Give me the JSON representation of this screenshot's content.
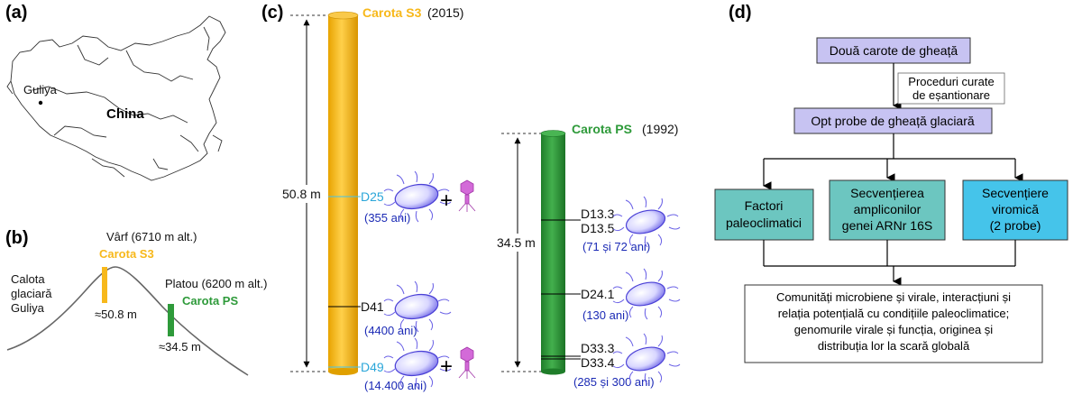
{
  "panels": {
    "a": "(a)",
    "b": "(b)",
    "c": "(c)",
    "d": "(d)"
  },
  "map": {
    "guliya_label": "Guliya",
    "country_label": "China"
  },
  "profile": {
    "summit_label": "Vârf (6710 m alt.)",
    "s3_label": "Carota S3",
    "plateau_label": "Platou (6200 m alt.)",
    "ps_label": "Carota PS",
    "icecap_line1": "Calota",
    "icecap_line2": "glaciară",
    "icecap_line3": "Guliya",
    "s3_depth": "≈50.8 m",
    "ps_depth": "≈34.5 m"
  },
  "cores": {
    "s3": {
      "name": "Carota S3",
      "year": "(2015)",
      "depth": "50.8 m",
      "samples": [
        {
          "id": "D25",
          "age": "(355 ani)",
          "virus": true
        },
        {
          "id": "D41",
          "age": "(4400 ani)",
          "virus": false
        },
        {
          "id": "D49",
          "age": "(14.400 ani)",
          "virus": true
        }
      ]
    },
    "ps": {
      "name": "Carota PS",
      "year": "(1992)",
      "depth": "34.5 m",
      "samples": [
        {
          "id": "D13.3",
          "id2": "D13.5",
          "age": "(71 și 72 ani)"
        },
        {
          "id": "D24.1",
          "age": "(130 ani)"
        },
        {
          "id": "D33.3",
          "id2": "D33.4",
          "age": "(285 și 300 ani)"
        }
      ]
    },
    "plus": "+"
  },
  "flow": {
    "top": "Două carote de gheață",
    "procedure_line1": "Proceduri curate",
    "procedure_line2": "de eșantionare",
    "eight": "Opt probe de gheață glaciară",
    "factors_line1": "Factori",
    "factors_line2": "paleoclimatici",
    "amplicon_line1": "Secvențierea",
    "amplicon_line2": "ampliconilor",
    "amplicon_line3": "genei ARNr 16S",
    "viromic_line1": "Secvențiere",
    "viromic_line2": "viromică",
    "viromic_line3": "(2 probe)",
    "result_line1": "Comunități microbiene și virale, interacțiuni și",
    "result_line2": "relația potențială cu condițiile paleoclimatice;",
    "result_line3": "genomurile virale și funcția, originea și",
    "result_line4": "distribuția lor la scară globală"
  },
  "colors": {
    "s3": "#f7b81b",
    "ps": "#2e9a3a",
    "lilac": "#c7c3f2",
    "teal": "#6cc6c0",
    "cyan": "#45c4ea",
    "bacterium": "#6b62e6",
    "virus": "#d36ad8"
  }
}
